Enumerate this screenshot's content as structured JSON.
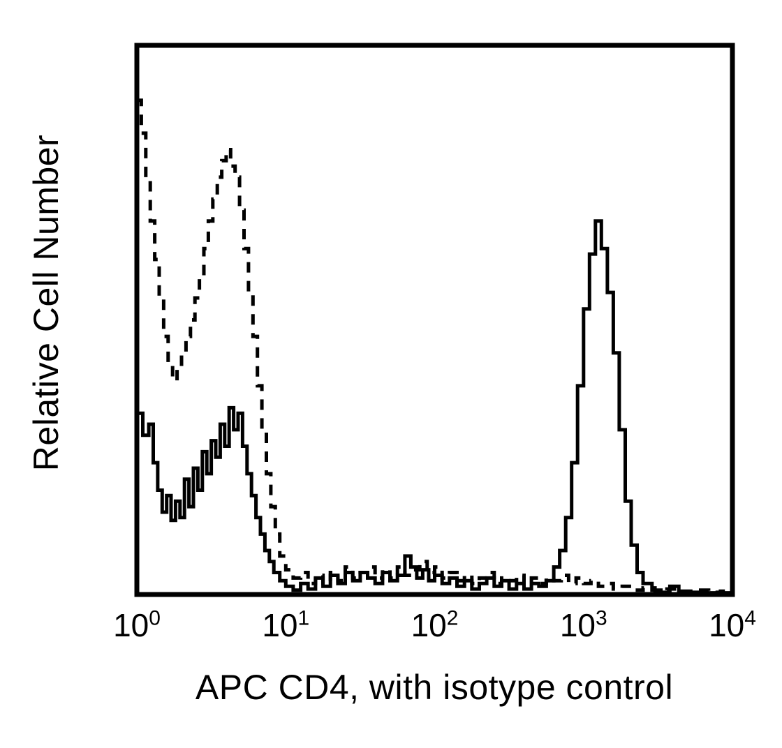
{
  "figure": {
    "background": "#ffffff",
    "ink": "#000000"
  },
  "chart_data": {
    "type": "line",
    "chart_kind": "flow-cytometry-histogram",
    "title": "",
    "xlabel": "APC CD4, with isotype control",
    "ylabel": "Relative Cell Number",
    "x_scale": "log10",
    "x_range": [
      1,
      10000
    ],
    "x_ticks": [
      {
        "base": "10",
        "exp": "0",
        "log": 0,
        "value": 1
      },
      {
        "base": "10",
        "exp": "1",
        "log": 1,
        "value": 10
      },
      {
        "base": "10",
        "exp": "2",
        "log": 2,
        "value": 100
      },
      {
        "base": "10",
        "exp": "3",
        "log": 3,
        "value": 1000
      },
      {
        "base": "10",
        "exp": "4",
        "log": 4,
        "value": 10000
      }
    ],
    "y_ticks": [],
    "y_units": "relative (unlabeled axis, values as fraction of axis height)",
    "grid": false,
    "legend": null,
    "series": [
      {
        "name": "APC CD4",
        "line": "solid",
        "color": "#000000",
        "points": [
          [
            0.0,
            0.33
          ],
          [
            0.04,
            0.29
          ],
          [
            0.08,
            0.31
          ],
          [
            0.11,
            0.24
          ],
          [
            0.14,
            0.19
          ],
          [
            0.17,
            0.15
          ],
          [
            0.2,
            0.18
          ],
          [
            0.23,
            0.135
          ],
          [
            0.26,
            0.17
          ],
          [
            0.29,
            0.14
          ],
          [
            0.32,
            0.21
          ],
          [
            0.35,
            0.16
          ],
          [
            0.38,
            0.23
          ],
          [
            0.41,
            0.19
          ],
          [
            0.44,
            0.26
          ],
          [
            0.47,
            0.22
          ],
          [
            0.5,
            0.28
          ],
          [
            0.53,
            0.25
          ],
          [
            0.56,
            0.31
          ],
          [
            0.59,
            0.27
          ],
          [
            0.62,
            0.34
          ],
          [
            0.65,
            0.3
          ],
          [
            0.68,
            0.33
          ],
          [
            0.71,
            0.27
          ],
          [
            0.74,
            0.22
          ],
          [
            0.77,
            0.18
          ],
          [
            0.8,
            0.14
          ],
          [
            0.83,
            0.11
          ],
          [
            0.86,
            0.08
          ],
          [
            0.89,
            0.06
          ],
          [
            0.92,
            0.04
          ],
          [
            0.96,
            0.025
          ],
          [
            1.0,
            0.015
          ],
          [
            1.05,
            0.008
          ],
          [
            1.1,
            0.02
          ],
          [
            1.15,
            0.01
          ],
          [
            1.2,
            0.03
          ],
          [
            1.25,
            0.015
          ],
          [
            1.3,
            0.035
          ],
          [
            1.35,
            0.02
          ],
          [
            1.4,
            0.04
          ],
          [
            1.45,
            0.025
          ],
          [
            1.5,
            0.04
          ],
          [
            1.55,
            0.03
          ],
          [
            1.6,
            0.02
          ],
          [
            1.65,
            0.04
          ],
          [
            1.7,
            0.025
          ],
          [
            1.75,
            0.035
          ],
          [
            1.8,
            0.07
          ],
          [
            1.84,
            0.05
          ],
          [
            1.88,
            0.03
          ],
          [
            1.92,
            0.045
          ],
          [
            1.96,
            0.025
          ],
          [
            2.0,
            0.035
          ],
          [
            2.05,
            0.02
          ],
          [
            2.1,
            0.03
          ],
          [
            2.15,
            0.015
          ],
          [
            2.2,
            0.025
          ],
          [
            2.25,
            0.01
          ],
          [
            2.3,
            0.02
          ],
          [
            2.35,
            0.03
          ],
          [
            2.4,
            0.015
          ],
          [
            2.45,
            0.025
          ],
          [
            2.5,
            0.01
          ],
          [
            2.55,
            0.02
          ],
          [
            2.6,
            0.01
          ],
          [
            2.65,
            0.02
          ],
          [
            2.7,
            0.015
          ],
          [
            2.75,
            0.025
          ],
          [
            2.8,
            0.05
          ],
          [
            2.84,
            0.08
          ],
          [
            2.88,
            0.14
          ],
          [
            2.92,
            0.24
          ],
          [
            2.96,
            0.38
          ],
          [
            3.0,
            0.52
          ],
          [
            3.04,
            0.62
          ],
          [
            3.08,
            0.68
          ],
          [
            3.12,
            0.63
          ],
          [
            3.16,
            0.55
          ],
          [
            3.2,
            0.44
          ],
          [
            3.24,
            0.3
          ],
          [
            3.28,
            0.17
          ],
          [
            3.32,
            0.09
          ],
          [
            3.36,
            0.04
          ],
          [
            3.4,
            0.02
          ],
          [
            3.46,
            0.008
          ],
          [
            3.52,
            0.004
          ],
          [
            3.58,
            0.015
          ],
          [
            3.64,
            0.006
          ],
          [
            3.72,
            0.004
          ],
          [
            3.82,
            0.003
          ],
          [
            3.92,
            0.003
          ],
          [
            4.0,
            0.003
          ]
        ]
      },
      {
        "name": "isotype control",
        "line": "dashed",
        "color": "#000000",
        "points": [
          [
            0.0,
            0.9
          ],
          [
            0.03,
            0.84
          ],
          [
            0.06,
            0.76
          ],
          [
            0.09,
            0.68
          ],
          [
            0.12,
            0.61
          ],
          [
            0.15,
            0.54
          ],
          [
            0.18,
            0.47
          ],
          [
            0.21,
            0.42
          ],
          [
            0.24,
            0.39
          ],
          [
            0.27,
            0.41
          ],
          [
            0.3,
            0.44
          ],
          [
            0.33,
            0.47
          ],
          [
            0.36,
            0.5
          ],
          [
            0.39,
            0.54
          ],
          [
            0.42,
            0.58
          ],
          [
            0.45,
            0.63
          ],
          [
            0.48,
            0.68
          ],
          [
            0.51,
            0.72
          ],
          [
            0.54,
            0.76
          ],
          [
            0.57,
            0.79
          ],
          [
            0.6,
            0.81
          ],
          [
            0.63,
            0.78
          ],
          [
            0.66,
            0.76
          ],
          [
            0.69,
            0.7
          ],
          [
            0.72,
            0.63
          ],
          [
            0.75,
            0.55
          ],
          [
            0.78,
            0.47
          ],
          [
            0.81,
            0.38
          ],
          [
            0.84,
            0.3
          ],
          [
            0.87,
            0.22
          ],
          [
            0.9,
            0.16
          ],
          [
            0.93,
            0.11
          ],
          [
            0.96,
            0.07
          ],
          [
            1.0,
            0.045
          ],
          [
            1.05,
            0.03
          ],
          [
            1.1,
            0.04
          ],
          [
            1.15,
            0.02
          ],
          [
            1.2,
            0.035
          ],
          [
            1.25,
            0.02
          ],
          [
            1.3,
            0.04
          ],
          [
            1.35,
            0.025
          ],
          [
            1.4,
            0.05
          ],
          [
            1.45,
            0.03
          ],
          [
            1.5,
            0.04
          ],
          [
            1.55,
            0.05
          ],
          [
            1.6,
            0.03
          ],
          [
            1.65,
            0.045
          ],
          [
            1.7,
            0.03
          ],
          [
            1.75,
            0.05
          ],
          [
            1.8,
            0.035
          ],
          [
            1.85,
            0.045
          ],
          [
            1.9,
            0.06
          ],
          [
            1.95,
            0.04
          ],
          [
            2.0,
            0.05
          ],
          [
            2.05,
            0.03
          ],
          [
            2.1,
            0.04
          ],
          [
            2.15,
            0.025
          ],
          [
            2.2,
            0.035
          ],
          [
            2.25,
            0.02
          ],
          [
            2.3,
            0.03
          ],
          [
            2.35,
            0.04
          ],
          [
            2.4,
            0.02
          ],
          [
            2.45,
            0.03
          ],
          [
            2.5,
            0.025
          ],
          [
            2.55,
            0.035
          ],
          [
            2.6,
            0.02
          ],
          [
            2.65,
            0.03
          ],
          [
            2.7,
            0.02
          ],
          [
            2.75,
            0.03
          ],
          [
            2.8,
            0.025
          ],
          [
            2.85,
            0.035
          ],
          [
            2.9,
            0.02
          ],
          [
            2.95,
            0.03
          ],
          [
            3.0,
            0.02
          ],
          [
            3.05,
            0.025
          ],
          [
            3.1,
            0.015
          ],
          [
            3.15,
            0.02
          ],
          [
            3.2,
            0.01
          ],
          [
            3.26,
            0.015
          ],
          [
            3.32,
            0.008
          ],
          [
            3.4,
            0.012
          ],
          [
            3.48,
            0.006
          ],
          [
            3.56,
            0.01
          ],
          [
            3.64,
            0.005
          ],
          [
            3.74,
            0.008
          ],
          [
            3.84,
            0.004
          ],
          [
            3.92,
            0.006
          ],
          [
            4.0,
            0.004
          ]
        ]
      }
    ]
  }
}
